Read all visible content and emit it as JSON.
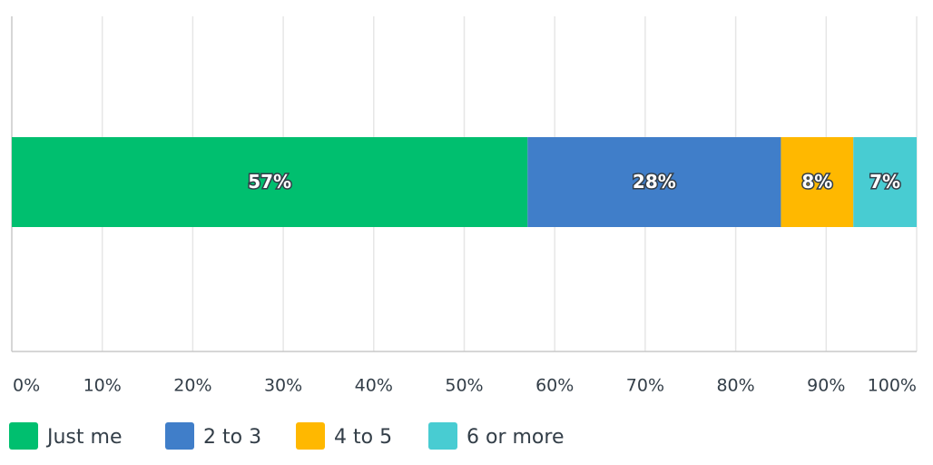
{
  "chart_data": {
    "type": "bar",
    "orientation": "horizontal",
    "stacked": true,
    "series": [
      {
        "name": "Just me",
        "color": "#00bf6f",
        "values": [
          57
        ],
        "value_labels": [
          "57%"
        ]
      },
      {
        "name": "2 to 3",
        "color": "#407ec9",
        "values": [
          28
        ],
        "value_labels": [
          "28%"
        ]
      },
      {
        "name": "4 to 5",
        "color": "#ffb800",
        "values": [
          8
        ],
        "value_labels": [
          "8%"
        ]
      },
      {
        "name": "6 or more",
        "color": "#48ccd2",
        "values": [
          7
        ],
        "value_labels": [
          "7%"
        ]
      }
    ],
    "xlim": [
      0,
      100
    ],
    "xticks": [
      {
        "value": 0,
        "label": "0%"
      },
      {
        "value": 10,
        "label": "10%"
      },
      {
        "value": 20,
        "label": "20%"
      },
      {
        "value": 30,
        "label": "30%"
      },
      {
        "value": 40,
        "label": "40%"
      },
      {
        "value": 50,
        "label": "50%"
      },
      {
        "value": 60,
        "label": "60%"
      },
      {
        "value": 70,
        "label": "70%"
      },
      {
        "value": 80,
        "label": "80%"
      },
      {
        "value": 90,
        "label": "90%"
      },
      {
        "value": 100,
        "label": "100%"
      }
    ],
    "grid": true,
    "legend": "bottom-left"
  }
}
